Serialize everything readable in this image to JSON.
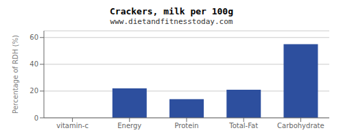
{
  "chart_data": {
    "type": "bar",
    "title": "Crackers, milk per 100g",
    "subtitle": "www.dietandfitnesstoday.com",
    "categories": [
      "vitamin-c",
      "Energy",
      "Protein",
      "Total-Fat",
      "Carbohydrate"
    ],
    "values": [
      0,
      22,
      14,
      21,
      55
    ],
    "color": "#2d4f9e",
    "ylabel": "Percentage of RDH (%)",
    "ylim": [
      0,
      65
    ],
    "yticks": [
      0,
      20,
      40,
      60
    ],
    "grid": true
  }
}
